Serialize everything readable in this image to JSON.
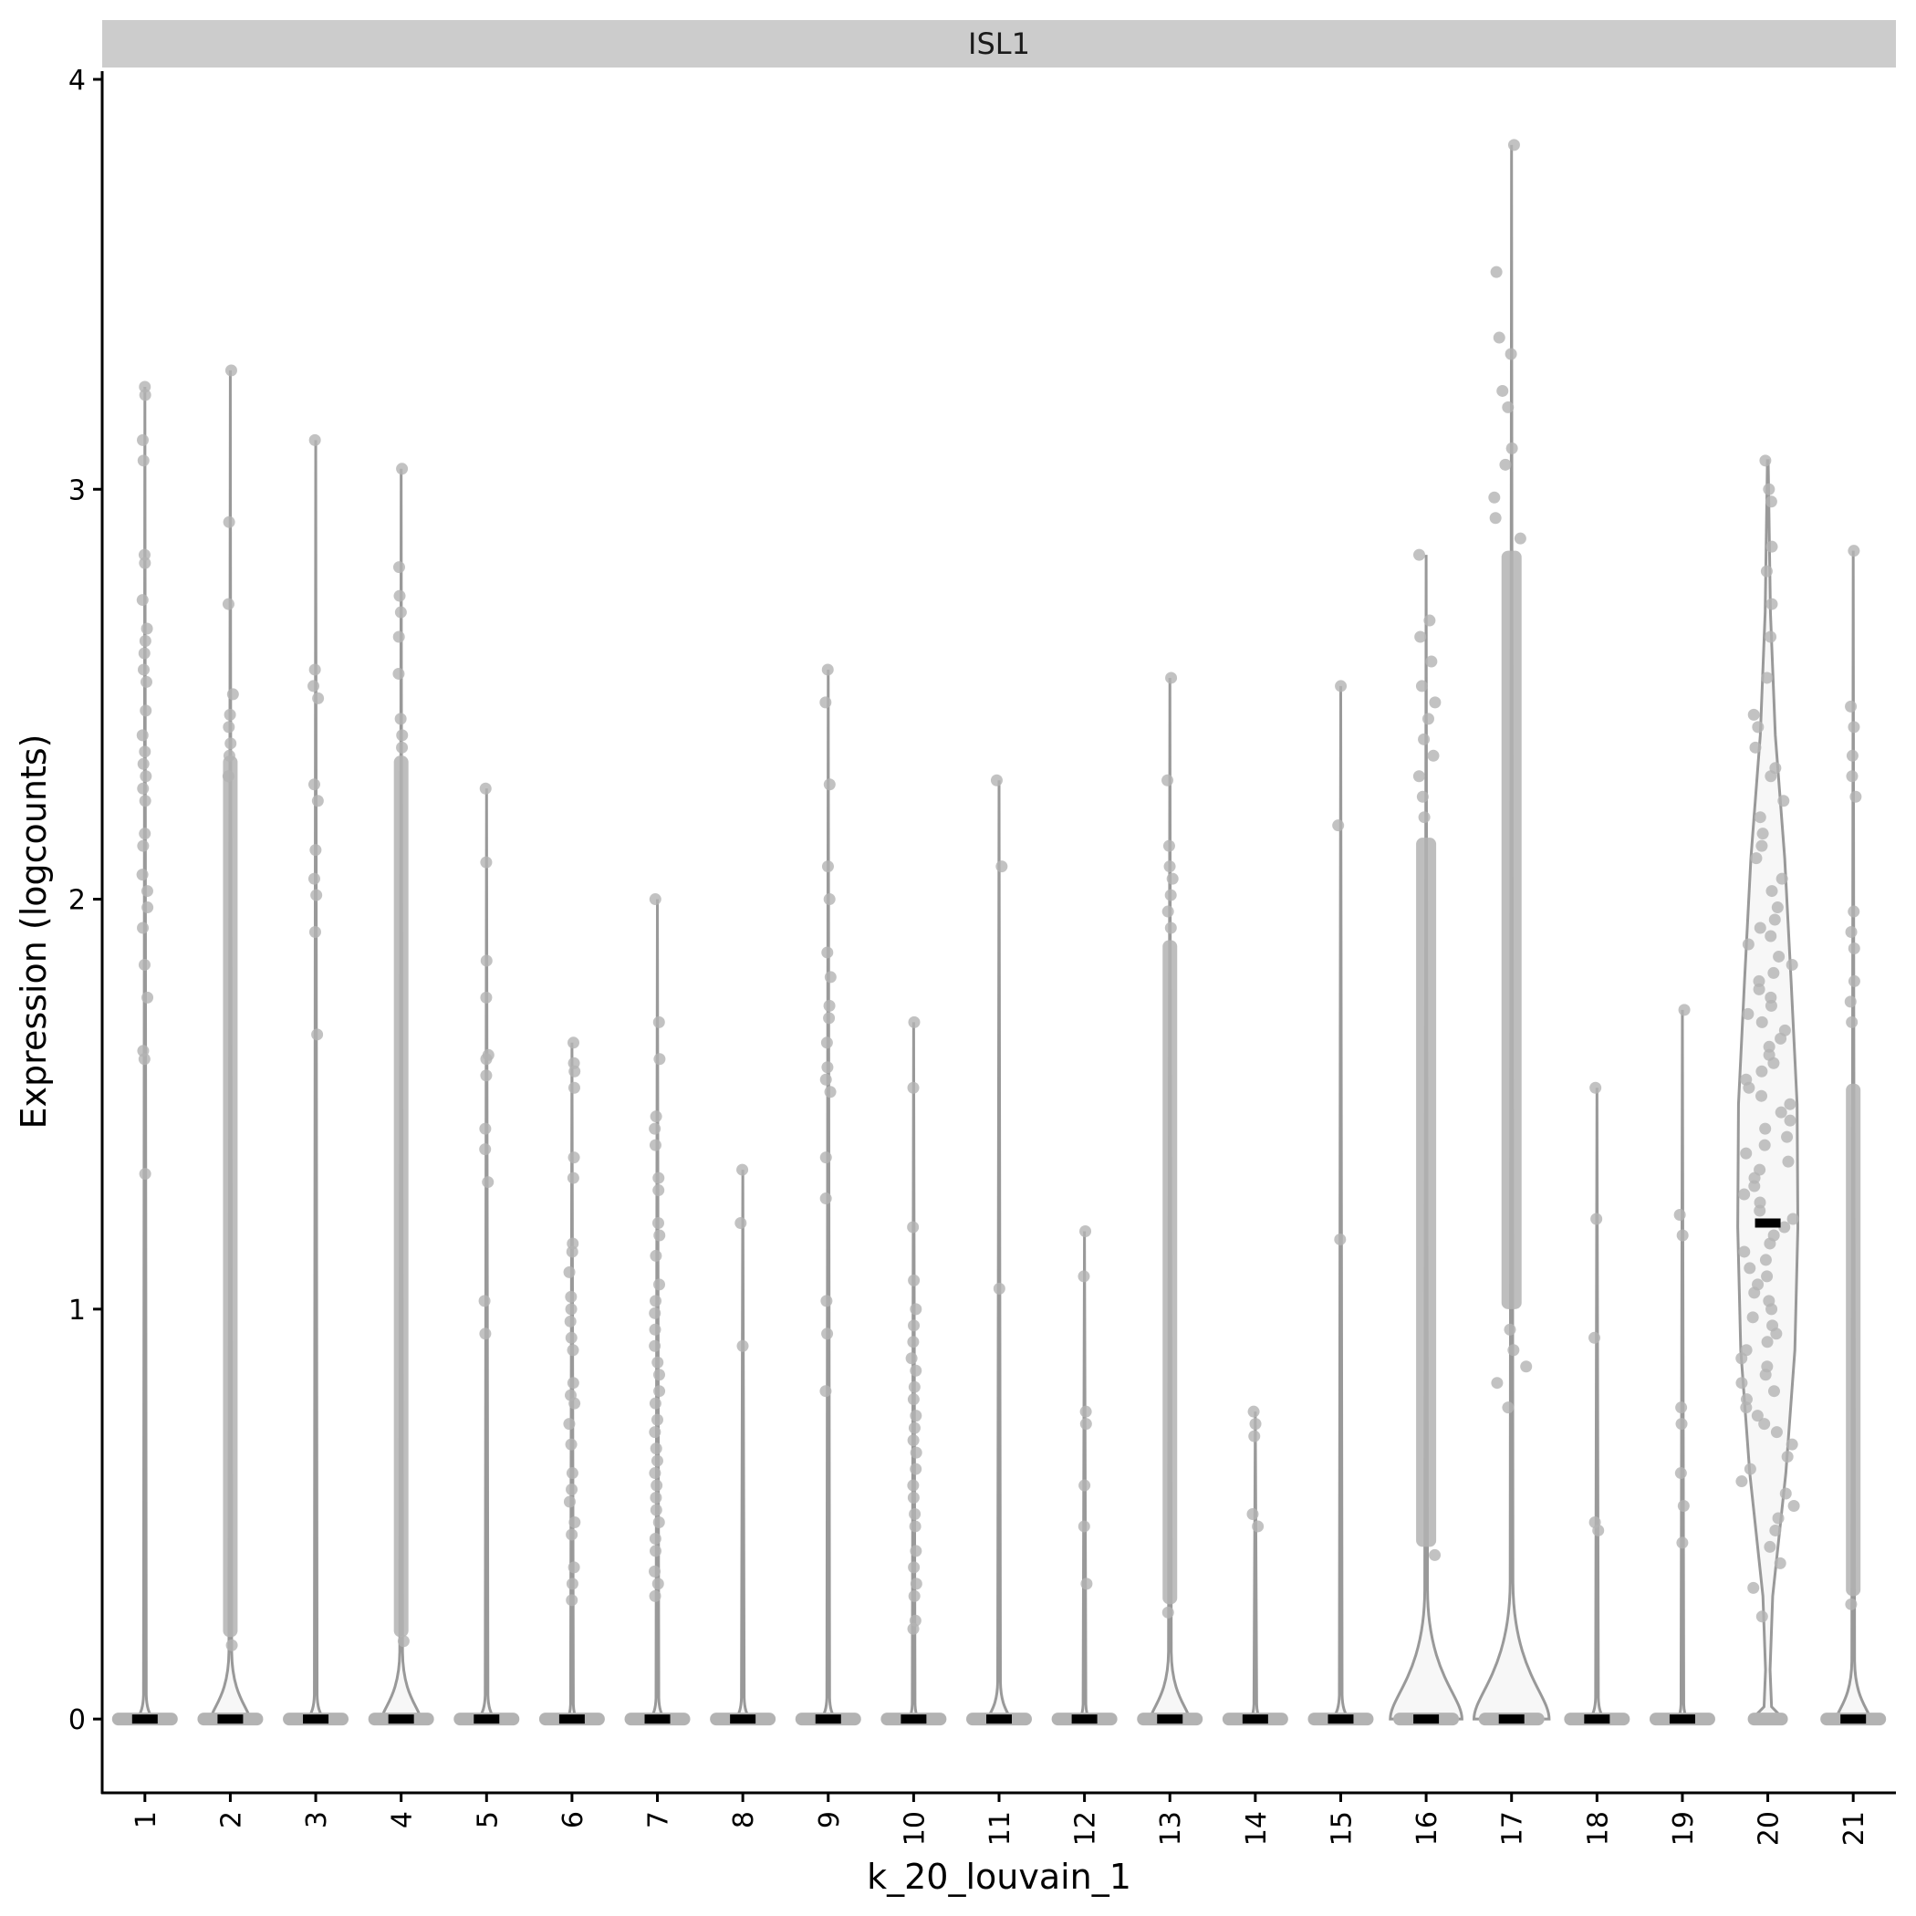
{
  "chart_data": {
    "type": "violin",
    "facet_title": "ISL1",
    "xlabel": "k_20_louvain_1",
    "ylabel": "Expression (logcounts)",
    "ylim": [
      -0.18,
      4.02
    ],
    "yticks": [
      0,
      1,
      2,
      3,
      4
    ],
    "grid": false,
    "legend": "none",
    "colors": {
      "violin_line": "#999999",
      "violin_fill": "#f7f7f7",
      "point": "#b3b3b3",
      "median": "#000000",
      "strip": "#cccccc"
    },
    "categories": [
      "1",
      "2",
      "3",
      "4",
      "5",
      "6",
      "7",
      "8",
      "9",
      "10",
      "11",
      "12",
      "13",
      "14",
      "15",
      "16",
      "17",
      "18",
      "19",
      "20",
      "21"
    ],
    "series": [
      {
        "cluster": "1",
        "median": 0,
        "max": 3.25,
        "zero_bulge": 0.12,
        "density": "low",
        "points": [
          3.25,
          3.23,
          3.12,
          3.07,
          2.84,
          2.82,
          2.73,
          2.66,
          2.63,
          2.6,
          2.56,
          2.53,
          2.46,
          2.4,
          2.36,
          2.33,
          2.3,
          2.27,
          2.24,
          2.16,
          2.13,
          2.06,
          2.02,
          1.98,
          1.93,
          1.84,
          1.76,
          1.63,
          1.61,
          1.33
        ]
      },
      {
        "cluster": "2",
        "median": 0,
        "max": 3.29,
        "zero_bulge": 0.45,
        "density": "dense",
        "dense_range": [
          0.2,
          2.35
        ],
        "points": [
          3.29,
          2.92,
          2.72,
          2.5,
          2.45,
          2.42,
          2.38,
          2.35,
          2.3,
          0.18
        ]
      },
      {
        "cluster": "3",
        "median": 0,
        "max": 3.12,
        "zero_bulge": 0.12,
        "density": "low",
        "points": [
          3.12,
          2.56,
          2.52,
          2.49,
          2.28,
          2.24,
          2.12,
          2.05,
          2.01,
          1.92,
          1.67
        ]
      },
      {
        "cluster": "4",
        "median": 0,
        "max": 3.05,
        "zero_bulge": 0.45,
        "density": "dense",
        "dense_range": [
          0.2,
          2.35
        ],
        "points": [
          3.05,
          2.81,
          2.74,
          2.7,
          2.64,
          2.55,
          2.44,
          2.4,
          2.37,
          0.19
        ]
      },
      {
        "cluster": "5",
        "median": 0,
        "max": 2.27,
        "zero_bulge": 0.12,
        "density": "low",
        "points": [
          2.27,
          2.09,
          1.85,
          1.76,
          1.62,
          1.61,
          1.57,
          1.44,
          1.39,
          1.31,
          1.02,
          0.94
        ]
      },
      {
        "cluster": "6",
        "median": 0,
        "max": 1.65,
        "zero_bulge": 0.05,
        "density": "low",
        "points": [
          1.65,
          1.6,
          1.58,
          1.54,
          1.37,
          1.32,
          1.16,
          1.14,
          1.09,
          1.03,
          1.0,
          0.97,
          0.93,
          0.9,
          0.82,
          0.79,
          0.77,
          0.72,
          0.67,
          0.6,
          0.56,
          0.53,
          0.48,
          0.45,
          0.37,
          0.33,
          0.29
        ]
      },
      {
        "cluster": "7",
        "median": 0,
        "max": 2.0,
        "zero_bulge": 0.1,
        "density": "medium",
        "points": [
          2.0,
          1.7,
          1.61,
          1.47,
          1.44,
          1.4,
          1.32,
          1.29,
          1.21,
          1.18,
          1.13,
          1.06,
          1.02,
          0.99,
          0.95,
          0.91,
          0.87,
          0.84,
          0.8,
          0.77,
          0.73,
          0.7,
          0.66,
          0.63,
          0.6,
          0.57,
          0.54,
          0.51,
          0.48,
          0.44,
          0.41,
          0.36,
          0.33,
          0.3
        ]
      },
      {
        "cluster": "8",
        "median": 0,
        "max": 1.34,
        "zero_bulge": 0.1,
        "density": "low",
        "points": [
          1.34,
          1.21,
          0.91
        ]
      },
      {
        "cluster": "9",
        "median": 0,
        "max": 2.56,
        "zero_bulge": 0.1,
        "density": "low",
        "points": [
          2.56,
          2.48,
          2.28,
          2.08,
          2.0,
          1.87,
          1.81,
          1.74,
          1.71,
          1.65,
          1.59,
          1.56,
          1.53,
          1.37,
          1.27,
          1.02,
          0.94,
          0.8
        ]
      },
      {
        "cluster": "10",
        "median": 0,
        "max": 1.7,
        "zero_bulge": 0.05,
        "density": "medium",
        "points": [
          1.7,
          1.54,
          1.2,
          1.07,
          1.0,
          0.96,
          0.92,
          0.88,
          0.85,
          0.81,
          0.78,
          0.74,
          0.71,
          0.68,
          0.65,
          0.61,
          0.57,
          0.54,
          0.5,
          0.47,
          0.41,
          0.37,
          0.33,
          0.3,
          0.24,
          0.22
        ]
      },
      {
        "cluster": "11",
        "median": 0,
        "max": 2.29,
        "zero_bulge": 0.22,
        "density": "low",
        "points": [
          2.29,
          2.08,
          1.05
        ]
      },
      {
        "cluster": "12",
        "median": 0,
        "max": 1.19,
        "zero_bulge": 0.05,
        "density": "low",
        "points": [
          1.19,
          1.08,
          0.75,
          0.72,
          0.57,
          0.47,
          0.33
        ]
      },
      {
        "cluster": "13",
        "median": 0,
        "max": 2.54,
        "zero_bulge": 0.45,
        "density": "dense",
        "dense_range": [
          0.28,
          1.9
        ],
        "points": [
          2.54,
          2.29,
          2.13,
          2.08,
          2.05,
          2.01,
          1.97,
          1.93,
          0.26
        ]
      },
      {
        "cluster": "14",
        "median": 0,
        "max": 0.75,
        "zero_bulge": 0.05,
        "density": "low",
        "points": [
          0.75,
          0.72,
          0.69,
          0.5,
          0.47
        ]
      },
      {
        "cluster": "15",
        "median": 0,
        "max": 2.52,
        "zero_bulge": 0.12,
        "density": "low",
        "points": [
          2.52,
          2.18,
          1.17
        ]
      },
      {
        "cluster": "16",
        "median": 0,
        "max": 2.84,
        "zero_bulge": 0.92,
        "density": "dense",
        "dense_range": [
          0.42,
          2.15
        ],
        "points": [
          2.84,
          2.68,
          2.64,
          2.58,
          2.52,
          2.48,
          2.44,
          2.39,
          2.35,
          2.3,
          2.25,
          2.2,
          0.4
        ]
      },
      {
        "cluster": "17",
        "median": 0,
        "max": 3.84,
        "zero_bulge": 0.98,
        "density": "dense",
        "dense_range": [
          1.0,
          2.85
        ],
        "points": [
          3.84,
          3.53,
          3.37,
          3.33,
          3.24,
          3.2,
          3.1,
          3.06,
          2.98,
          2.93,
          2.88,
          0.95,
          0.9,
          0.86,
          0.82,
          0.76
        ]
      },
      {
        "cluster": "18",
        "median": 0,
        "max": 1.54,
        "zero_bulge": 0.1,
        "density": "low",
        "points": [
          1.54,
          1.22,
          0.93,
          0.48,
          0.46
        ]
      },
      {
        "cluster": "19",
        "median": 0,
        "max": 1.73,
        "zero_bulge": 0.05,
        "density": "low",
        "points": [
          1.73,
          1.23,
          1.18,
          0.76,
          0.72,
          0.6,
          0.52,
          0.43
        ]
      },
      {
        "cluster": "20",
        "median": 1.21,
        "max": 3.07,
        "zero_bulge": 0.65,
        "density": "violin",
        "points": [
          3.07,
          3.0,
          2.97,
          2.86,
          2.8,
          2.72,
          2.64,
          2.54,
          2.45,
          2.42,
          2.37,
          2.32,
          2.3,
          2.24,
          2.2,
          2.16,
          2.13,
          2.1,
          2.05,
          2.02,
          1.98,
          1.95,
          1.93,
          1.91,
          1.89,
          1.86,
          1.84,
          1.82,
          1.8,
          1.78,
          1.76,
          1.74,
          1.72,
          1.7,
          1.68,
          1.66,
          1.64,
          1.62,
          1.6,
          1.58,
          1.56,
          1.54,
          1.52,
          1.5,
          1.48,
          1.46,
          1.44,
          1.42,
          1.4,
          1.38,
          1.36,
          1.34,
          1.32,
          1.3,
          1.28,
          1.26,
          1.24,
          1.22,
          1.2,
          1.18,
          1.16,
          1.14,
          1.12,
          1.1,
          1.08,
          1.06,
          1.04,
          1.02,
          1.0,
          0.98,
          0.96,
          0.94,
          0.92,
          0.9,
          0.88,
          0.86,
          0.84,
          0.82,
          0.8,
          0.78,
          0.76,
          0.74,
          0.72,
          0.7,
          0.67,
          0.64,
          0.61,
          0.58,
          0.55,
          0.52,
          0.49,
          0.46,
          0.42,
          0.38,
          0.32,
          0.25
        ]
      },
      {
        "cluster": "21",
        "median": 0,
        "max": 2.85,
        "zero_bulge": 0.38,
        "density": "dense",
        "dense_range": [
          0.3,
          1.55
        ],
        "points": [
          2.85,
          2.47,
          2.42,
          2.35,
          2.3,
          2.25,
          1.97,
          1.92,
          1.88,
          1.8,
          1.75,
          1.7,
          0.28
        ]
      }
    ]
  }
}
